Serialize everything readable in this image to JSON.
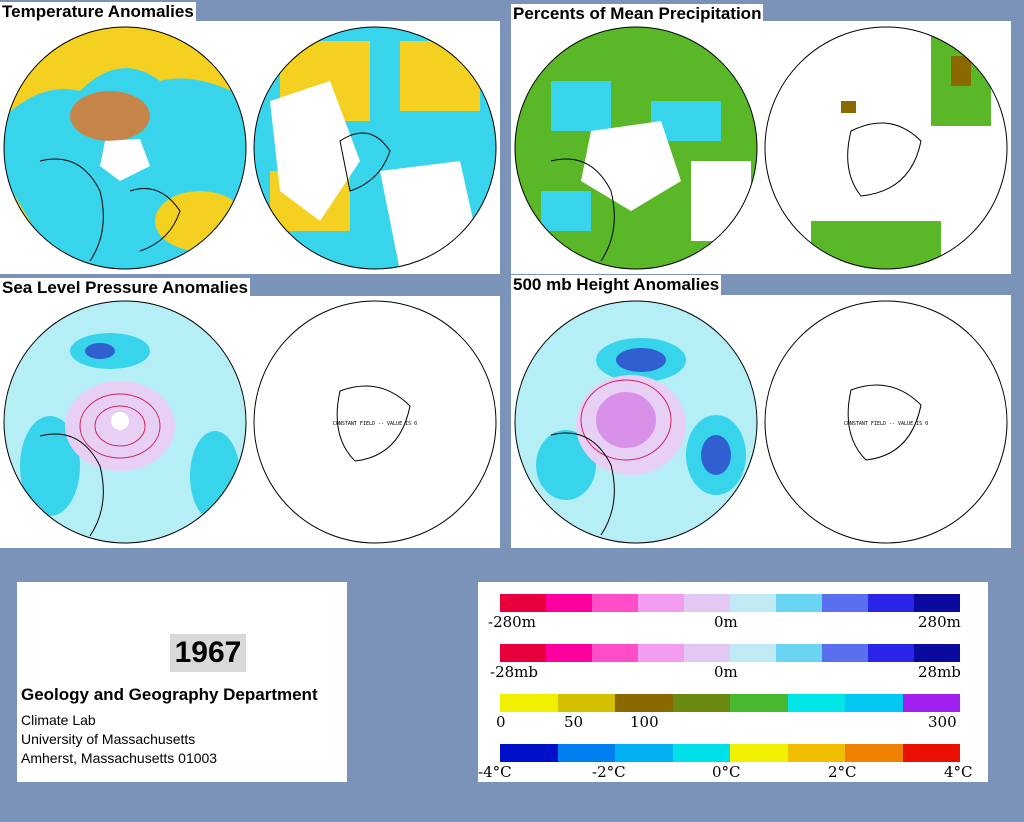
{
  "panels": {
    "temperature": {
      "title": "Temperature Anomalies"
    },
    "precipitation": {
      "title": "Percents of Mean Precipitation"
    },
    "slp": {
      "title": "Sea Level Pressure Anomalies",
      "constant_field_note": "CONSTANT FIELD -- VALUE IS 0"
    },
    "height500": {
      "title": "500 mb Height Anomalies",
      "constant_field_note": "CONSTANT FIELD -- VALUE IS 0"
    }
  },
  "info": {
    "year": "1967",
    "department": "Geology and Geography Department",
    "lines": [
      "Climate Lab",
      "University of Massachusetts",
      "Amherst, Massachusetts 01003"
    ]
  },
  "legend": {
    "height": {
      "left": "-280m",
      "center": "0m",
      "right": "280m",
      "colors": [
        "#e8003c",
        "#ff00a0",
        "#ff4cc8",
        "#f39cf0",
        "#e4c8f4",
        "#bfeaf4",
        "#6ad4f2",
        "#5a6ef0",
        "#2a24e8",
        "#0a0a9e"
      ]
    },
    "pressure": {
      "left": "-28mb",
      "center": "0m",
      "right": "28mb",
      "colors": [
        "#e8003c",
        "#ff00a0",
        "#ff4cc8",
        "#f39cf0",
        "#e4c8f4",
        "#bfeaf4",
        "#6ad4f2",
        "#5a6ef0",
        "#2a24e8",
        "#0a0a9e"
      ]
    },
    "precip": {
      "t0": "0",
      "t50": "50",
      "t100": "100",
      "t300": "300",
      "colors": [
        "#f0f000",
        "#d4c000",
        "#8a6a00",
        "#6a8a10",
        "#48b830",
        "#00e6e6",
        "#00c8f0",
        "#a020f0"
      ]
    },
    "temp": {
      "t1": "-4°C",
      "t2": "-2°C",
      "t3": "0°C",
      "t4": "2°C",
      "t5": "4°C",
      "colors": [
        "#0010c8",
        "#0080f0",
        "#00b0f0",
        "#00e0e8",
        "#f0f000",
        "#f0c000",
        "#f08000",
        "#e81000"
      ]
    }
  },
  "map_colors": {
    "ocean_cyan": "#38d4ec",
    "light_cyan": "#b6eef6",
    "yellow": "#f4d020",
    "orange": "#e87020",
    "green": "#5ab828",
    "blue_low": "#3060d0",
    "pink_high": "#d890e8"
  }
}
